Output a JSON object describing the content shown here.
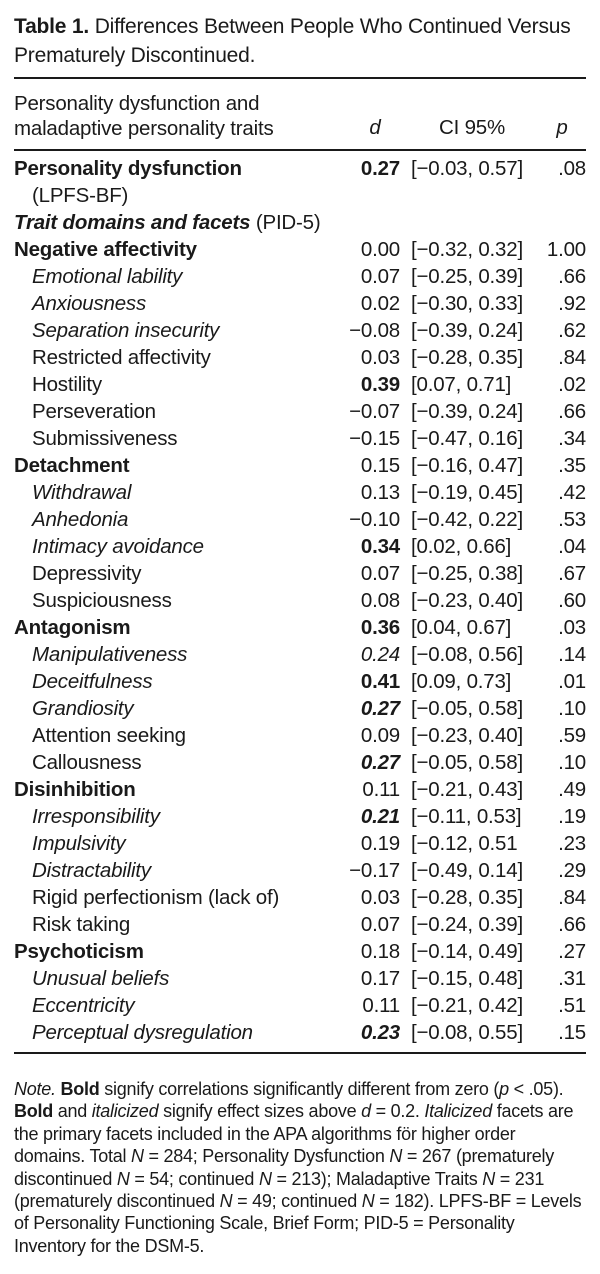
{
  "title": {
    "label": "Table 1.",
    "text": "Differences Between People Who Continued Versus Prematurely Discontinued."
  },
  "header": {
    "col1_line1": "Personality dysfunction and",
    "col1_line2": "maladaptive personality traits",
    "d": "d",
    "ci": "CI 95%",
    "p": "p"
  },
  "table": {
    "rows": [
      {
        "label": "Personality dysfunction",
        "label2": "(LPFS-BF)",
        "label_style": "b",
        "d": "0.27",
        "d_style": "b",
        "ci": "[−0.03, 0.57]",
        "p": ".08"
      },
      {
        "label": "Trait domains and facets",
        "suffix": " (PID-5)",
        "label_style": "bi",
        "d": "",
        "ci": "",
        "p": ""
      },
      {
        "label": "Negative affectivity",
        "label_style": "b",
        "d": "0.00",
        "ci": "[−0.32, 0.32]",
        "p": "1.00"
      },
      {
        "label": "Emotional lability",
        "label_style": "i",
        "indent": true,
        "d": "0.07",
        "ci": "[−0.25, 0.39]",
        "p": ".66"
      },
      {
        "label": "Anxiousness",
        "label_style": "i",
        "indent": true,
        "d": "0.02",
        "ci": "[−0.30, 0.33]",
        "p": ".92"
      },
      {
        "label": "Separation insecurity",
        "label_style": "i",
        "indent": true,
        "d": "−0.08",
        "ci": "[−0.39, 0.24]",
        "p": ".62"
      },
      {
        "label": "Restricted affectivity",
        "indent": true,
        "d": "0.03",
        "ci": "[−0.28, 0.35]",
        "p": ".84"
      },
      {
        "label": "Hostility",
        "indent": true,
        "d": "0.39",
        "d_style": "b",
        "ci": "[0.07, 0.71]",
        "p": ".02"
      },
      {
        "label": "Perseveration",
        "indent": true,
        "d": "−0.07",
        "ci": "[−0.39, 0.24]",
        "p": ".66"
      },
      {
        "label": "Submissiveness",
        "indent": true,
        "d": "−0.15",
        "ci": "[−0.47, 0.16]",
        "p": ".34"
      },
      {
        "label": "Detachment",
        "label_style": "b",
        "d": "0.15",
        "ci": "[−0.16, 0.47]",
        "p": ".35"
      },
      {
        "label": "Withdrawal",
        "label_style": "i",
        "indent": true,
        "d": "0.13",
        "ci": "[−0.19, 0.45]",
        "p": ".42"
      },
      {
        "label": "Anhedonia",
        "label_style": "i",
        "indent": true,
        "d": "−0.10",
        "ci": "[−0.42, 0.22]",
        "p": ".53"
      },
      {
        "label": "Intimacy avoidance",
        "label_style": "i",
        "indent": true,
        "d": "0.34",
        "d_style": "b",
        "ci": "[0.02, 0.66]",
        "p": ".04"
      },
      {
        "label": "Depressivity",
        "indent": true,
        "d": "0.07",
        "ci": "[−0.25, 0.38]",
        "p": ".67"
      },
      {
        "label": "Suspiciousness",
        "indent": true,
        "d": "0.08",
        "ci": "[−0.23, 0.40]",
        "p": ".60"
      },
      {
        "label": "Antagonism",
        "label_style": "b",
        "d": "0.36",
        "d_style": "b",
        "ci": "[0.04, 0.67]",
        "p": ".03"
      },
      {
        "label": "Manipulativeness",
        "label_style": "i",
        "indent": true,
        "d": "0.24",
        "d_style": "i",
        "ci": "[−0.08, 0.56]",
        "p": ".14"
      },
      {
        "label": "Deceitfulness",
        "label_style": "i",
        "indent": true,
        "d": "0.41",
        "d_style": "b",
        "ci": "[0.09, 0.73]",
        "p": ".01"
      },
      {
        "label": "Grandiosity",
        "label_style": "i",
        "indent": true,
        "d": "0.27",
        "d_style": "bi",
        "ci": "[−0.05, 0.58]",
        "p": ".10"
      },
      {
        "label": "Attention seeking",
        "indent": true,
        "d": "0.09",
        "ci": "[−0.23, 0.40]",
        "p": ".59"
      },
      {
        "label": "Callousness",
        "indent": true,
        "d": "0.27",
        "d_style": "bi",
        "ci": "[−0.05, 0.58]",
        "p": ".10"
      },
      {
        "label": "Disinhibition",
        "label_style": "b",
        "d": "0.11",
        "ci": "[−0.21, 0.43]",
        "p": ".49"
      },
      {
        "label": "Irresponsibility",
        "label_style": "i",
        "indent": true,
        "d": "0.21",
        "d_style": "bi",
        "ci": "[−0.11, 0.53]",
        "p": ".19"
      },
      {
        "label": "Impulsivity",
        "label_style": "i",
        "indent": true,
        "d": "0.19",
        "ci": "[−0.12, 0.51",
        "p": ".23"
      },
      {
        "label": "Distractability",
        "label_style": "i",
        "indent": true,
        "d": "−0.17",
        "ci": "[−0.49, 0.14]",
        "p": ".29"
      },
      {
        "label": "Rigid perfectionism (lack of)",
        "indent": true,
        "d": "0.03",
        "ci": "[−0.28, 0.35]",
        "p": ".84"
      },
      {
        "label": "Risk taking",
        "indent": true,
        "d": "0.07",
        "ci": "[−0.24, 0.39]",
        "p": ".66"
      },
      {
        "label": "Psychoticism",
        "label_style": "b",
        "d": "0.18",
        "ci": "[−0.14, 0.49]",
        "p": ".27"
      },
      {
        "label": "Unusual beliefs",
        "label_style": "i",
        "indent": true,
        "d": "0.17",
        "ci": "[−0.15, 0.48]",
        "p": ".31"
      },
      {
        "label": "Eccentricity",
        "label_style": "i",
        "indent": true,
        "d": "0.11",
        "ci": "[−0.21, 0.42]",
        "p": ".51"
      },
      {
        "label": "Perceptual dysregulation",
        "label_style": "i",
        "indent": true,
        "d": "0.23",
        "d_style": "bi",
        "ci": "[−0.08, 0.55]",
        "p": ".15"
      }
    ]
  },
  "note": {
    "runs": [
      {
        "t": "Note.",
        "s": "i"
      },
      {
        "t": " ",
        "s": ""
      },
      {
        "t": "Bold",
        "s": "b"
      },
      {
        "t": " signify correlations significantly different from zero (",
        "s": ""
      },
      {
        "t": "p",
        "s": "i"
      },
      {
        "t": " < .05). ",
        "s": ""
      },
      {
        "t": "Bold",
        "s": "b"
      },
      {
        "t": " and ",
        "s": ""
      },
      {
        "t": "italicized",
        "s": "i"
      },
      {
        "t": " signify effect sizes above ",
        "s": ""
      },
      {
        "t": "d",
        "s": "i"
      },
      {
        "t": " = 0.2. ",
        "s": ""
      },
      {
        "t": "Italicized",
        "s": "i"
      },
      {
        "t": " facets are the primary facets included in the APA algorithms för higher order domains. Total ",
        "s": ""
      },
      {
        "t": "N",
        "s": "i"
      },
      {
        "t": " = 284; Personality Dysfunction ",
        "s": ""
      },
      {
        "t": "N",
        "s": "i"
      },
      {
        "t": " = 267 (prematurely discontinued ",
        "s": ""
      },
      {
        "t": "N",
        "s": "i"
      },
      {
        "t": " = 54; continued ",
        "s": ""
      },
      {
        "t": "N",
        "s": "i"
      },
      {
        "t": " = 213); Maladaptive Traits ",
        "s": ""
      },
      {
        "t": "N",
        "s": "i"
      },
      {
        "t": " = 231 (prematurely discontinued ",
        "s": ""
      },
      {
        "t": "N",
        "s": "i"
      },
      {
        "t": " = 49; continued ",
        "s": ""
      },
      {
        "t": "N",
        "s": "i"
      },
      {
        "t": " = 182). LPFS-BF = Levels of Personality Functioning Scale, Brief Form; PID-5 = Personality Inventory for the DSM-5.",
        "s": ""
      }
    ]
  },
  "colors": {
    "text": "#1a1a1a",
    "background": "#ffffff",
    "rule": "#1a1a1a"
  }
}
